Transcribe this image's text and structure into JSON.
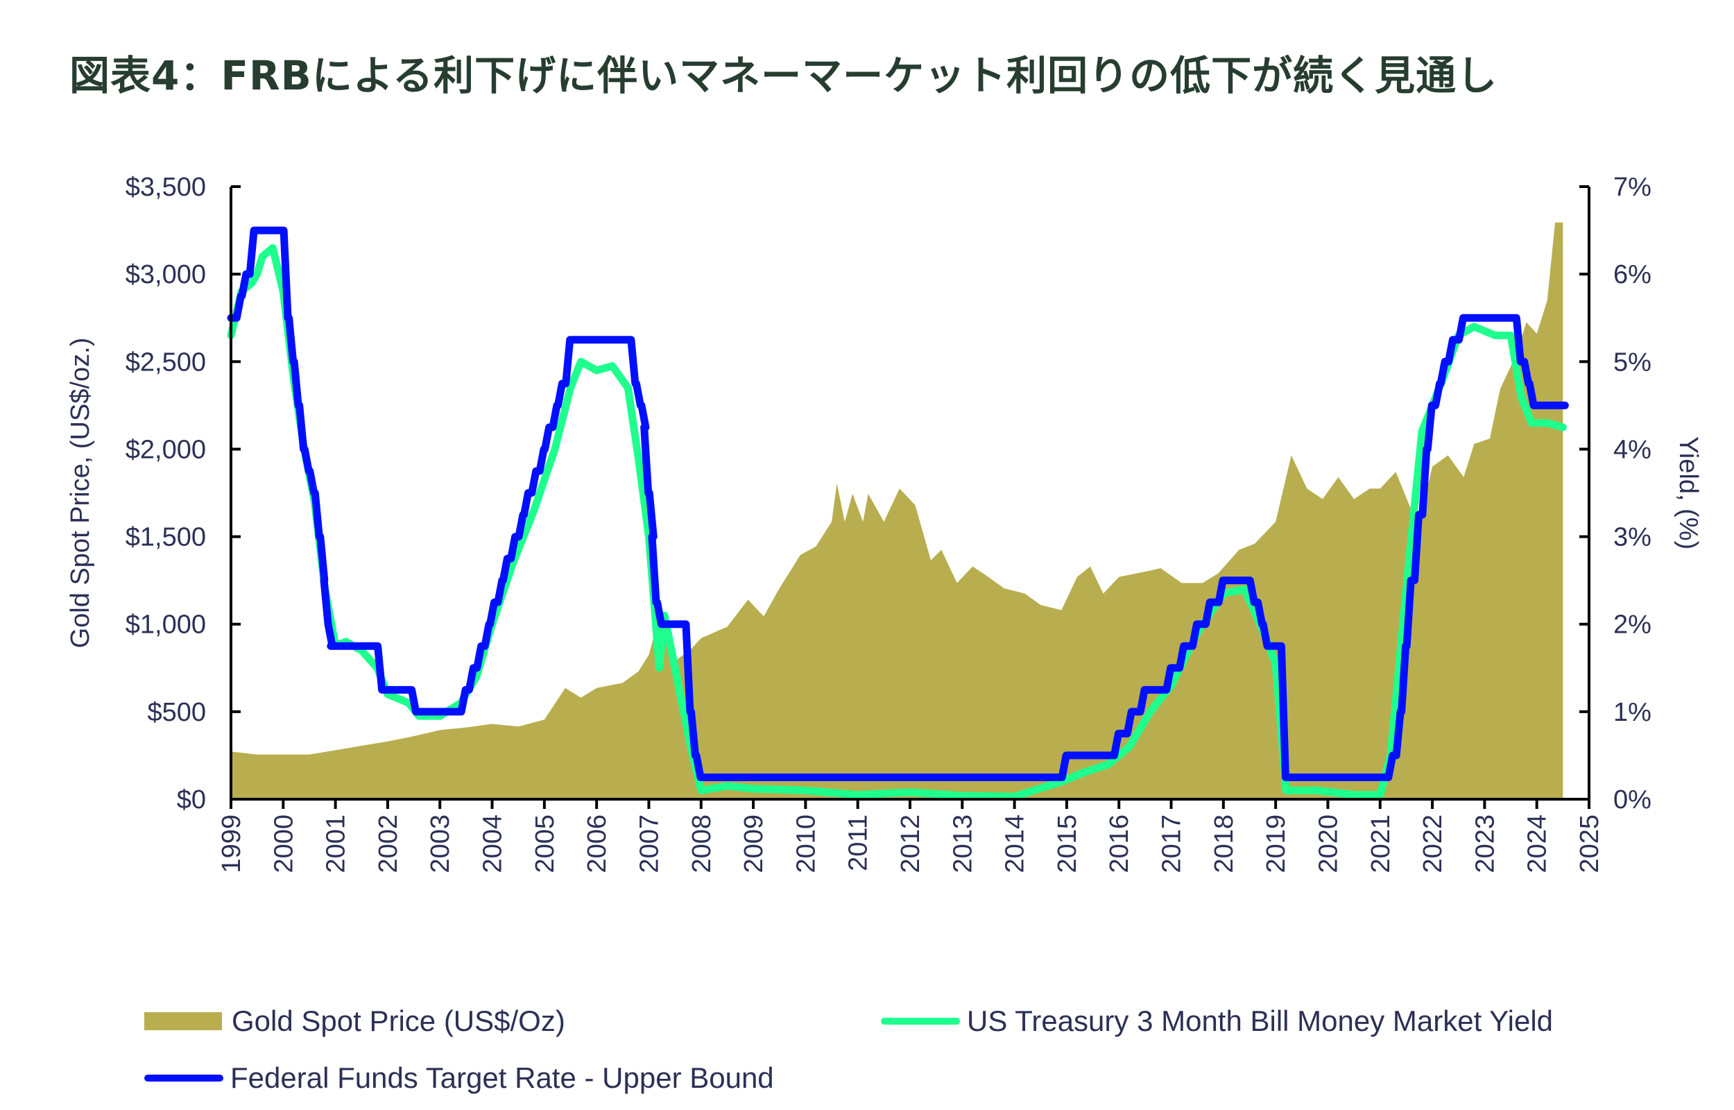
{
  "title": "図表4：FRBによる利下げに伴いマネーマーケット利回りの低下が続く見通し",
  "chart_data": {
    "type": "area+line",
    "title": "図表4：FRBによる利下げに伴いマネーマーケット利回りの低下が続く見通し",
    "xlabel": "",
    "ylabel_left": "Gold Spot Price, (US$/oz.)",
    "ylabel_right": "Yield, (%)",
    "xlim": [
      1999,
      2025
    ],
    "ylim_left": [
      0,
      3500
    ],
    "ylim_right": [
      0,
      7
    ],
    "x_ticks": [
      "1999",
      "2000",
      "2001",
      "2002",
      "2003",
      "2004",
      "2005",
      "2006",
      "2007",
      "2008",
      "2009",
      "2010",
      "2011",
      "2012",
      "2013",
      "2014",
      "2015",
      "2016",
      "2017",
      "2018",
      "2019",
      "2020",
      "2021",
      "2022",
      "2023",
      "2024",
      "2025"
    ],
    "y_left_ticks": [
      "$0",
      "$500",
      "$1,000",
      "$1,500",
      "$2,000",
      "$2,500",
      "$3,000",
      "$3,500"
    ],
    "y_right_ticks": [
      "0%",
      "1%",
      "2%",
      "3%",
      "4%",
      "5%",
      "6%",
      "7%"
    ],
    "grid": false,
    "legend_position": "bottom",
    "colors": {
      "gold": "#b8ae4f",
      "treasury": "#1eff8e",
      "fed": "#0010ff",
      "text": "#2b3055",
      "title": "#263d2f"
    },
    "series": [
      {
        "name": "Gold Spot Price (US$/Oz)",
        "type": "area",
        "axis": "left",
        "x": [
          1999.0,
          1999.5,
          2000.0,
          2000.5,
          2001.0,
          2001.5,
          2002.0,
          2002.5,
          2003.0,
          2003.5,
          2004.0,
          2004.5,
          2005.0,
          2005.4,
          2005.7,
          2006.0,
          2006.5,
          2006.8,
          2007.0,
          2007.2,
          2007.5,
          2007.8,
          2008.0,
          2008.5,
          2008.9,
          2009.2,
          2009.5,
          2009.9,
          2010.2,
          2010.5,
          2010.6,
          2010.75,
          2010.9,
          2011.1,
          2011.2,
          2011.5,
          2011.8,
          2012.1,
          2012.4,
          2012.6,
          2012.9,
          2013.2,
          2013.5,
          2013.8,
          2014.2,
          2014.5,
          2014.9,
          2015.2,
          2015.45,
          2015.7,
          2016.0,
          2016.5,
          2016.8,
          2017.2,
          2017.6,
          2017.9,
          2018.3,
          2018.6,
          2019.0,
          2019.3,
          2019.6,
          2019.9,
          2020.2,
          2020.5,
          2020.8,
          2021.0,
          2021.3,
          2021.6,
          2021.8,
          2022.0,
          2022.3,
          2022.6,
          2022.8,
          2023.1,
          2023.3,
          2023.6,
          2023.8,
          2024.0,
          2024.2,
          2024.35,
          2024.5
        ],
        "values": [
          272,
          255,
          255,
          255,
          280,
          305,
          330,
          360,
          395,
          410,
          430,
          415,
          455,
          635,
          580,
          635,
          665,
          730,
          825,
          1045,
          790,
          855,
          920,
          985,
          1140,
          1045,
          1205,
          1395,
          1445,
          1585,
          1805,
          1585,
          1745,
          1585,
          1745,
          1585,
          1775,
          1680,
          1365,
          1425,
          1235,
          1330,
          1270,
          1205,
          1175,
          1110,
          1080,
          1270,
          1330,
          1175,
          1270,
          1300,
          1320,
          1235,
          1235,
          1290,
          1425,
          1460,
          1585,
          1965,
          1775,
          1715,
          1840,
          1715,
          1775,
          1775,
          1870,
          1650,
          1650,
          1900,
          1965,
          1840,
          2030,
          2060,
          2345,
          2535,
          2725,
          2660,
          2850,
          3295,
          3295
        ]
      },
      {
        "name": "US Treasury 3 Month Bill Money Market Yield",
        "type": "line",
        "axis": "right",
        "x": [
          1999.0,
          1999.2,
          1999.4,
          1999.5,
          1999.6,
          1999.8,
          2000.0,
          2000.2,
          2000.4,
          2000.6,
          2000.8,
          2001.0,
          2001.2,
          2001.5,
          2001.8,
          2002.0,
          2002.4,
          2002.6,
          2003.0,
          2003.4,
          2003.7,
          2004.0,
          2004.4,
          2004.8,
          2005.2,
          2005.5,
          2005.7,
          2006.0,
          2006.3,
          2006.6,
          2006.8,
          2007.0,
          2007.2,
          2007.3,
          2007.5,
          2007.8,
          2008.0,
          2008.5,
          2009.0,
          2010.0,
          2011.0,
          2012.0,
          2013.0,
          2014.0,
          2014.9,
          2015.3,
          2015.8,
          2016.2,
          2016.6,
          2017.0,
          2017.5,
          2018.0,
          2018.4,
          2018.7,
          2019.0,
          2019.2,
          2019.8,
          2020.5,
          2021.0,
          2021.2,
          2021.5,
          2021.8,
          2022.2,
          2022.5,
          2022.8,
          2023.2,
          2023.5,
          2023.7,
          2023.9,
          2024.2,
          2024.5
        ],
        "values": [
          5.3,
          5.8,
          5.9,
          6.0,
          6.2,
          6.3,
          5.8,
          4.8,
          4.0,
          3.4,
          2.4,
          1.75,
          1.8,
          1.7,
          1.5,
          1.2,
          1.1,
          0.95,
          0.95,
          1.1,
          1.4,
          2.0,
          2.7,
          3.3,
          4.0,
          4.7,
          5.0,
          4.9,
          4.95,
          4.7,
          3.9,
          3.0,
          1.5,
          2.1,
          1.5,
          0.6,
          0.1,
          0.15,
          0.12,
          0.1,
          0.05,
          0.08,
          0.04,
          0.03,
          0.2,
          0.3,
          0.4,
          0.6,
          1.0,
          1.3,
          1.9,
          2.35,
          2.4,
          2.0,
          1.55,
          0.1,
          0.1,
          0.05,
          0.05,
          0.5,
          2.4,
          4.2,
          4.8,
          5.3,
          5.4,
          5.3,
          5.3,
          4.6,
          4.3,
          4.3,
          4.25
        ]
      },
      {
        "name": "Federal Funds Target Rate - Upper Bound",
        "type": "step",
        "axis": "right",
        "x": [
          1999.0,
          1999.15,
          1999.25,
          1999.4,
          2000.05,
          2000.15,
          2000.25,
          2000.35,
          2000.45,
          2000.55,
          2000.65,
          2000.75,
          2000.82,
          2000.9,
          2000.95,
          2001.85,
          2002.5,
          2003.45,
          2003.6,
          2003.75,
          2003.9,
          2004.0,
          2004.15,
          2004.25,
          2004.4,
          2004.55,
          2004.65,
          2004.8,
          2004.95,
          2005.05,
          2005.2,
          2005.3,
          2005.45,
          2006.7,
          2006.8,
          2006.9,
          2006.95,
          2007.05,
          2007.1,
          2007.2,
          2007.3,
          2007.75,
          2007.85,
          2007.95,
          2014.95,
          2015.95,
          2016.2,
          2016.45,
          2016.95,
          2017.2,
          2017.45,
          2017.7,
          2017.95,
          2018.55,
          2018.7,
          2018.8,
          2019.15,
          2021.2,
          2021.35,
          2021.45,
          2021.55,
          2021.7,
          2021.85,
          2021.95,
          2022.1,
          2022.2,
          2022.35,
          2022.55,
          2023.65,
          2023.8,
          2023.9,
          2024.5
        ],
        "values": [
          5.5,
          5.75,
          6.0,
          6.5,
          5.5,
          5.0,
          4.5,
          4.0,
          3.75,
          3.5,
          3.0,
          2.5,
          2.0,
          1.75,
          1.75,
          1.25,
          1.0,
          1.25,
          1.5,
          1.75,
          2.0,
          2.25,
          2.5,
          2.75,
          3.0,
          3.25,
          3.5,
          3.75,
          4.0,
          4.25,
          4.5,
          4.75,
          5.25,
          4.75,
          4.5,
          4.25,
          3.5,
          3.0,
          2.25,
          2.0,
          2.0,
          1.0,
          0.5,
          0.25,
          0.5,
          0.75,
          1.0,
          1.25,
          1.5,
          1.75,
          2.0,
          2.25,
          2.5,
          2.25,
          2.0,
          1.75,
          0.25,
          0.5,
          1.0,
          1.75,
          2.5,
          3.25,
          4.0,
          4.5,
          4.75,
          5.0,
          5.25,
          5.5,
          5.0,
          4.75,
          4.5,
          4.5
        ]
      }
    ]
  },
  "legend": {
    "gold": "Gold Spot Price (US$/Oz)",
    "treasury": "US Treasury 3 Month Bill Money Market Yield",
    "fed": "Federal Funds Target Rate - Upper Bound"
  }
}
